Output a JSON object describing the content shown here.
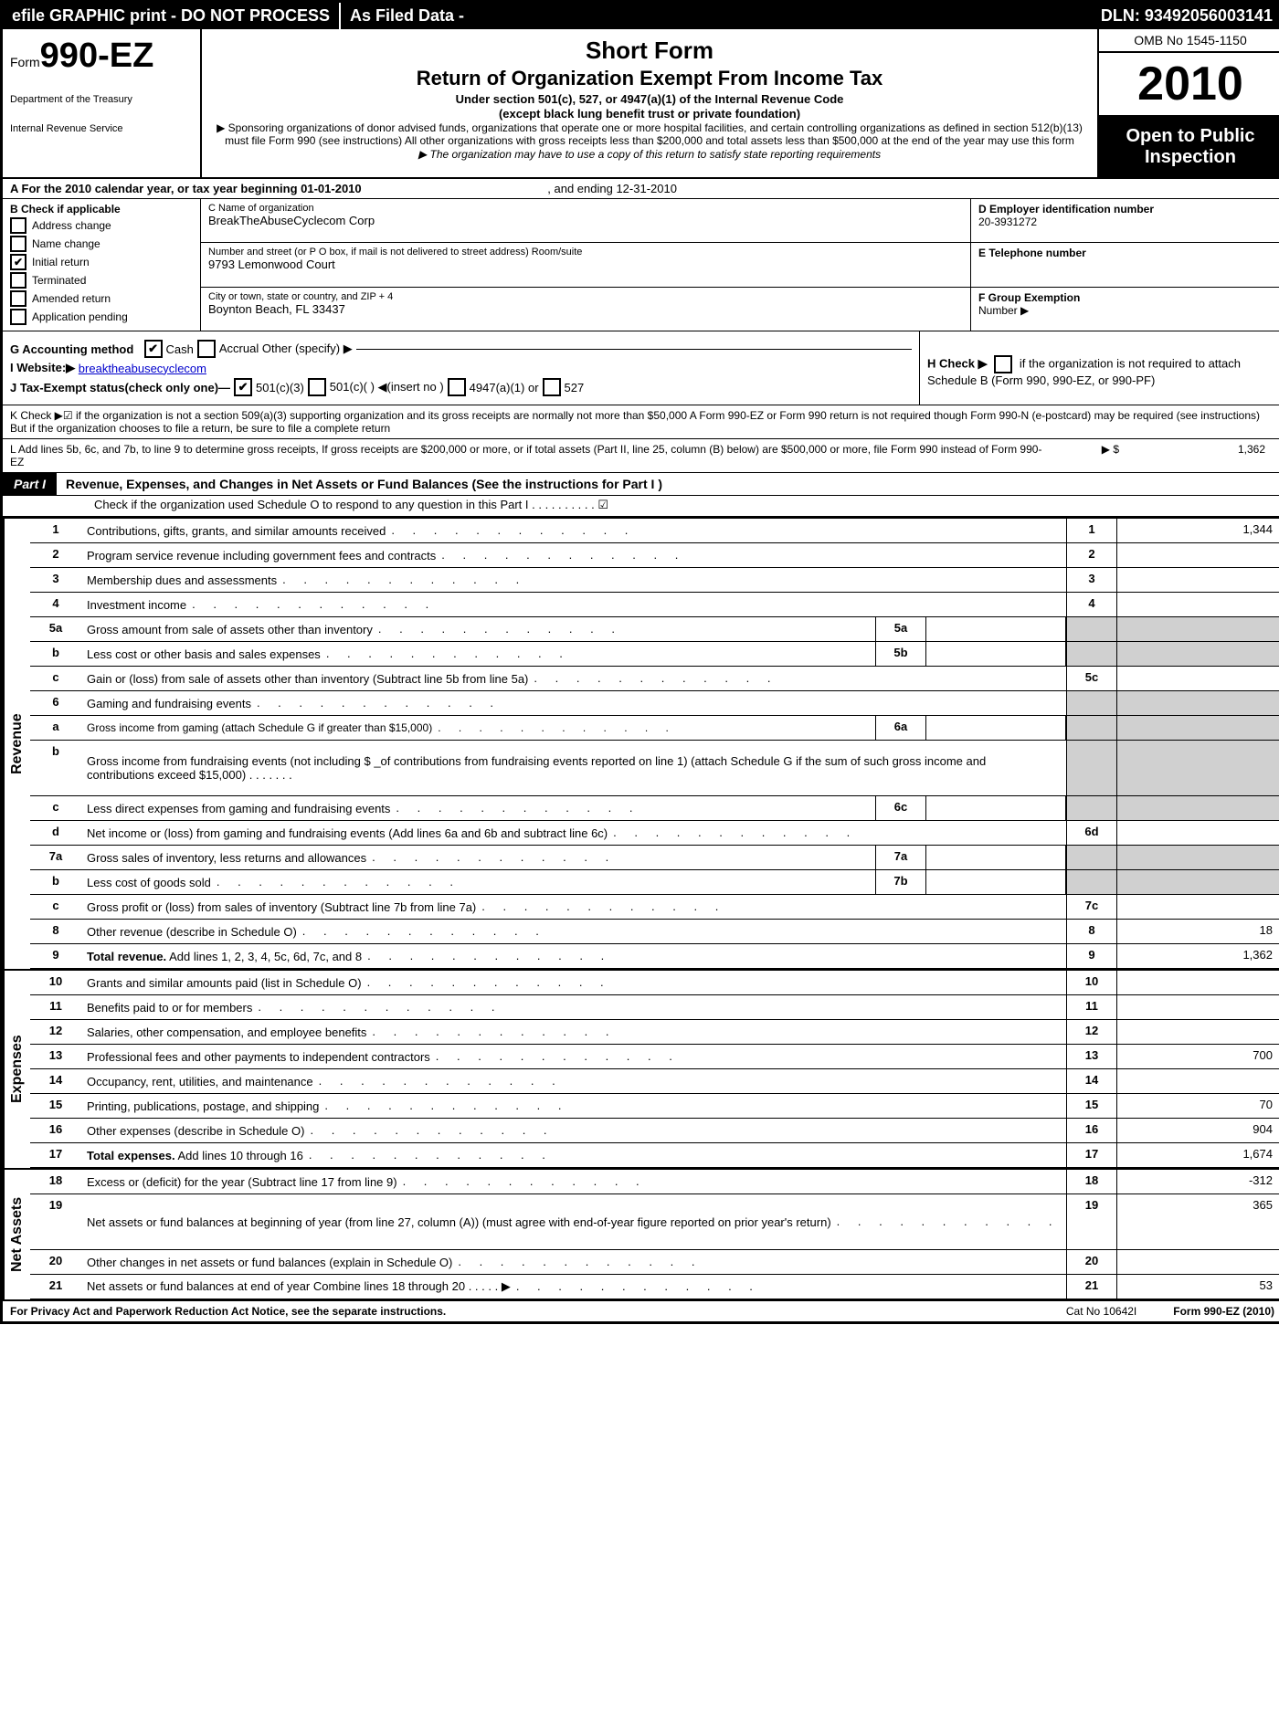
{
  "topbar": {
    "left": "efile GRAPHIC print - DO NOT PROCESS",
    "mid": "As Filed Data -",
    "right": "DLN: 93492056003141"
  },
  "header": {
    "form_word": "Form",
    "form_number": "990-EZ",
    "dept1": "Department of the Treasury",
    "dept2": "Internal Revenue Service",
    "title1": "Short Form",
    "title2": "Return of Organization Exempt From Income Tax",
    "sub1": "Under section 501(c), 527, or 4947(a)(1) of the Internal Revenue Code",
    "sub2": "(except black lung benefit trust or private foundation)",
    "note1": "▶ Sponsoring organizations of donor advised funds, organizations that operate one or more hospital facilities, and certain controlling organizations as defined in section 512(b)(13) must file Form 990 (see instructions) All other organizations with gross receipts less than $200,000 and total assets less than $500,000 at the end of the year may use this form",
    "note2": "▶ The organization may have to use a copy of this return to satisfy state reporting requirements",
    "omb": "OMB No 1545-1150",
    "year": "2010",
    "open1": "Open to Public",
    "open2": "Inspection"
  },
  "sectionA": {
    "text_a": "A  For the 2010 calendar year, or tax year beginning 01-01-2010",
    "text_b": ", and ending 12-31-2010"
  },
  "boxB": {
    "title": "B  Check if applicable",
    "items": [
      {
        "label": "Address change",
        "checked": false
      },
      {
        "label": "Name change",
        "checked": false
      },
      {
        "label": "Initial return",
        "checked": true
      },
      {
        "label": "Terminated",
        "checked": false
      },
      {
        "label": "Amended return",
        "checked": false
      },
      {
        "label": "Application pending",
        "checked": false
      }
    ]
  },
  "boxC": {
    "name_label": "C Name of organization",
    "name": "BreakTheAbuseCyclecom Corp",
    "addr_label": "Number and street (or P O box, if mail is not delivered to street address) Room/suite",
    "addr": "9793 Lemonwood Court",
    "city_label": "City or town, state or country, and ZIP + 4",
    "city": "Boynton Beach, FL  33437"
  },
  "boxDE": {
    "d_label": "D Employer identification number",
    "d_val": "20-3931272",
    "e_label": "E Telephone number",
    "e_val": "",
    "f_label": "F Group Exemption",
    "f_label2": "Number ▶"
  },
  "gij": {
    "g": "G Accounting method",
    "g_cash": "Cash",
    "g_accrual": "Accrual   Other (specify) ▶",
    "i": "I Website:▶",
    "i_val": "breaktheabusecyclecom",
    "j": "J Tax-Exempt status(check only one)—",
    "j1": "501(c)(3)",
    "j2": "501(c)(  ) ◀(insert no )",
    "j3": "4947(a)(1) or",
    "j4": "527",
    "h": "H  Check ▶",
    "h2": "if the organization is not required to attach Schedule B (Form 990, 990-EZ, or 990-PF)"
  },
  "k": "K Check ▶☑ if the organization is not a section 509(a)(3) supporting organization and its gross receipts are normally not more than $50,000  A Form 990-EZ or Form 990 return is not required though Form 990-N (e-postcard) may be required (see instructions)  But if the organization chooses to file a return, be sure to file a complete return",
  "l": {
    "text": "L Add lines 5b, 6c, and 7b, to line 9 to determine gross receipts, If gross receipts are $200,000 or more, or if total assets (Part II, line 25, column (B) below) are $500,000 or more, file Form 990 instead of Form 990-EZ",
    "arrow": "▶ $",
    "val": "1,362"
  },
  "part1": {
    "label": "Part I",
    "title": "Revenue, Expenses, and Changes in Net Assets or Fund Balances (See the instructions for Part I )",
    "sub": "Check if the organization used Schedule O to respond to any question in this Part I   .    .    .    .    .    .    .    .    .    . ☑"
  },
  "sections": {
    "revenue": "Revenue",
    "expenses": "Expenses",
    "netassets": "Net Assets"
  },
  "lines": [
    {
      "n": "1",
      "d": "Contributions, gifts, grants, and similar amounts received",
      "rn": "1",
      "rv": "1,344"
    },
    {
      "n": "2",
      "d": "Program service revenue including government fees and contracts",
      "rn": "2",
      "rv": ""
    },
    {
      "n": "3",
      "d": "Membership dues and assessments",
      "rn": "3",
      "rv": ""
    },
    {
      "n": "4",
      "d": "Investment income",
      "rn": "4",
      "rv": ""
    },
    {
      "n": "5a",
      "d": "Gross amount from sale of assets other than inventory",
      "in": "5a",
      "iv": "",
      "grey_r": true
    },
    {
      "n": "b",
      "d": "Less  cost or other basis and sales expenses",
      "in": "5b",
      "iv": "",
      "grey_r": true
    },
    {
      "n": "c",
      "d": "Gain or (loss) from sale of assets other than inventory (Subtract line 5b from line 5a)",
      "rn": "5c",
      "rv": ""
    },
    {
      "n": "6",
      "d": "Gaming and fundraising events",
      "grey_r": true,
      "no_rn": true
    },
    {
      "n": "a",
      "d": "Gross income from gaming (attach Schedule G if greater than $15,000)",
      "in": "6a",
      "iv": "",
      "grey_r": true,
      "small": true
    },
    {
      "n": "b",
      "d": "Gross income from fundraising events (not including $ _of contributions from fundraising events reported on line 1) (attach Schedule G if the sum of such gross income and contributions exceed $15,000)    .    .    .    .    .    .    .",
      "grey_r": true,
      "no_rn": true,
      "tall": true
    },
    {
      "n": "c",
      "d": "Less  direct expenses from gaming and fundraising events",
      "in": "6c",
      "iv": "",
      "grey_r": true
    },
    {
      "n": "d",
      "d": "Net income or (loss) from gaming and fundraising events (Add lines 6a and 6b and subtract line 6c)",
      "rn": "6d",
      "rv": ""
    },
    {
      "n": "7a",
      "d": "Gross sales of inventory, less returns and allowances",
      "in": "7a",
      "iv": "",
      "grey_r": true
    },
    {
      "n": "b",
      "d": "Less  cost of goods sold",
      "in": "7b",
      "iv": "",
      "grey_r": true
    },
    {
      "n": "c",
      "d": "Gross profit or (loss) from sales of inventory (Subtract line 7b from line 7a)",
      "rn": "7c",
      "rv": ""
    },
    {
      "n": "8",
      "d": "Other revenue (describe in Schedule O)",
      "rn": "8",
      "rv": "18"
    },
    {
      "n": "9",
      "d": "Total revenue. Add lines 1, 2, 3, 4, 5c, 6d, 7c, and 8",
      "rn": "9",
      "rv": "1,362",
      "bold": true
    }
  ],
  "exp_lines": [
    {
      "n": "10",
      "d": "Grants and similar amounts paid (list in Schedule O)",
      "rn": "10",
      "rv": ""
    },
    {
      "n": "11",
      "d": "Benefits paid to or for members",
      "rn": "11",
      "rv": ""
    },
    {
      "n": "12",
      "d": "Salaries, other compensation, and employee benefits",
      "rn": "12",
      "rv": ""
    },
    {
      "n": "13",
      "d": "Professional fees and other payments to independent contractors",
      "rn": "13",
      "rv": "700"
    },
    {
      "n": "14",
      "d": "Occupancy, rent, utilities, and maintenance",
      "rn": "14",
      "rv": ""
    },
    {
      "n": "15",
      "d": "Printing, publications, postage, and shipping",
      "rn": "15",
      "rv": "70"
    },
    {
      "n": "16",
      "d": "Other expenses (describe in Schedule O)",
      "rn": "16",
      "rv": "904"
    },
    {
      "n": "17",
      "d": "Total expenses. Add lines 10 through 16",
      "rn": "17",
      "rv": "1,674",
      "bold": true
    }
  ],
  "na_lines": [
    {
      "n": "18",
      "d": "Excess or (deficit) for the year (Subtract line 17 from line 9)",
      "rn": "18",
      "rv": "-312"
    },
    {
      "n": "19",
      "d": "Net assets or fund balances at beginning of year (from line 27, column (A)) (must agree with end-of-year figure reported on prior year's return)",
      "rn": "19",
      "rv": "365",
      "tall": true
    },
    {
      "n": "20",
      "d": "Other changes in net assets or fund balances (explain in Schedule O)",
      "rn": "20",
      "rv": ""
    },
    {
      "n": "21",
      "d": "Net assets or fund balances at end of year  Combine lines 18 through 20    .    .    .    .    . ▶",
      "rn": "21",
      "rv": "53"
    }
  ],
  "footer": {
    "left": "For Privacy Act and Paperwork Reduction Act Notice, see the separate instructions.",
    "center": "Cat No 10642I",
    "right": "Form 990-EZ (2010)"
  }
}
